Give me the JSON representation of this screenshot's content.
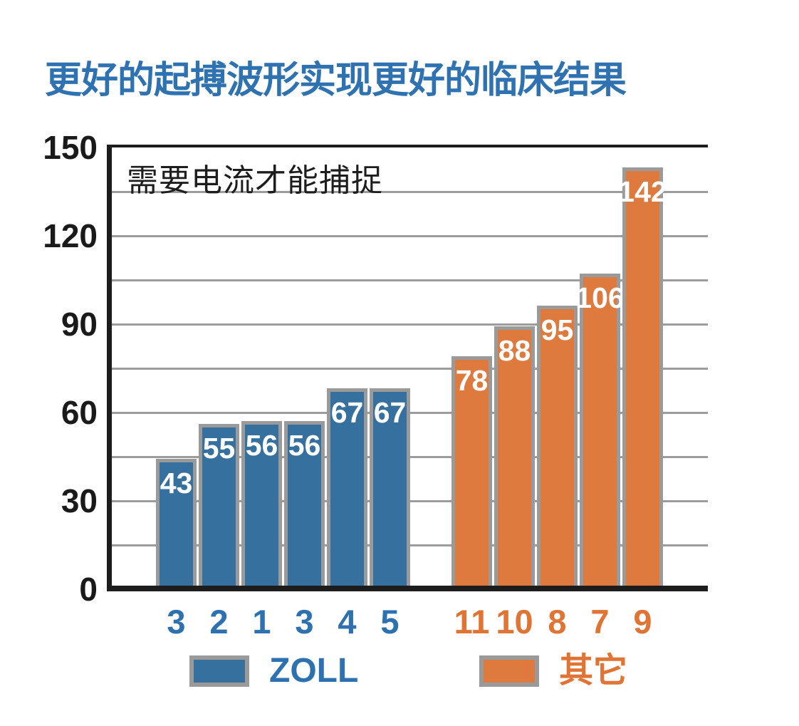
{
  "chart_data": {
    "type": "bar",
    "title": "更好的起搏波形实现更好的临床结果",
    "annotation": "需要电流才能捕捉",
    "xlabel": "",
    "ylabel": "",
    "ylim": [
      0,
      150
    ],
    "yticks": [
      0,
      30,
      60,
      90,
      120,
      150
    ],
    "grid_interval": 15,
    "grid": true,
    "legend_position": "bottom",
    "colors": {
      "title_blue": "#2E72B1",
      "zoll_blue": "#35709F",
      "other_orange": "#DF7A3F",
      "tick_blue": "#2E71B0",
      "tick_orange": "#E07435",
      "gridline_gray": "#9c9c9c",
      "bar_border_gray": "#9a9a9a",
      "axis_black": "#1d1d1d"
    },
    "series": [
      {
        "name": "ZOLL",
        "color": "#35709F",
        "tick_color": "#2E71B0",
        "categories": [
          "3",
          "2",
          "1",
          "3",
          "4",
          "5"
        ],
        "values": [
          43,
          55,
          56,
          56,
          67,
          67
        ]
      },
      {
        "name": "其它",
        "color": "#DF7A3F",
        "tick_color": "#E07435",
        "categories": [
          "11",
          "10",
          "8",
          "7",
          "9"
        ],
        "values": [
          78,
          88,
          95,
          106,
          142
        ]
      }
    ]
  }
}
